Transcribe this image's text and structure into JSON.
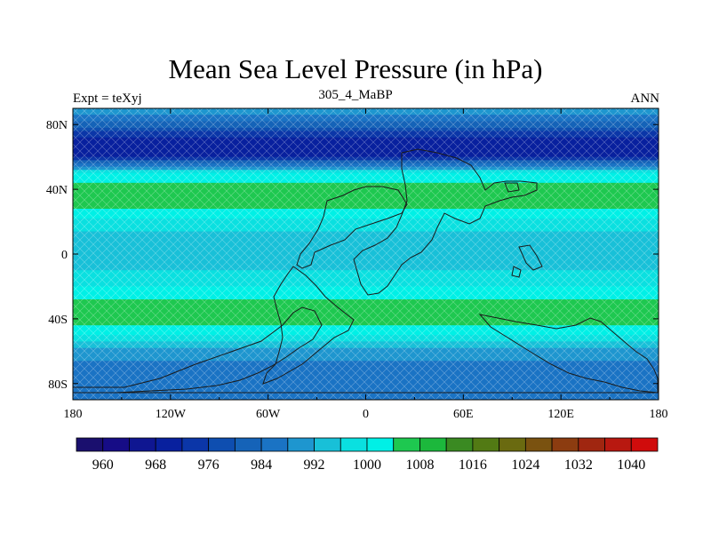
{
  "chart_data": {
    "type": "heatmap",
    "title": "Mean Sea Level Pressure (in hPa)",
    "subtitle_left": "Expt = teXyj",
    "subtitle_center": "305_4_MaBP",
    "subtitle_right": "ANN",
    "x_ticks": [
      "180",
      "120W",
      "60W",
      "0",
      "60E",
      "120E",
      "180"
    ],
    "x_tick_values": [
      -180,
      -120,
      -60,
      0,
      60,
      120,
      180
    ],
    "y_ticks": [
      "80N",
      "40N",
      "0",
      "40S",
      "80S"
    ],
    "y_tick_values": [
      80,
      40,
      0,
      -40,
      -80
    ],
    "xlim": [
      -180,
      180
    ],
    "ylim": [
      -90,
      90
    ],
    "colorbar": {
      "levels": [
        960,
        964,
        968,
        972,
        976,
        980,
        984,
        988,
        992,
        996,
        1000,
        1004,
        1008,
        1012,
        1016,
        1020,
        1024,
        1028,
        1032,
        1036,
        1040
      ],
      "labels": [
        "960",
        "968",
        "976",
        "984",
        "992",
        "1000",
        "1008",
        "1016",
        "1024",
        "1032",
        "1040"
      ],
      "colors": [
        "#1a0f6e",
        "#160c86",
        "#0f1691",
        "#08209e",
        "#0b36a8",
        "#0e4eb0",
        "#1563b8",
        "#1a73c4",
        "#1e96cf",
        "#18c0d8",
        "#0ae0e0",
        "#00f0e6",
        "#1ec850",
        "#1cb83c",
        "#3a8a22",
        "#527a14",
        "#6a6a10",
        "#7a5210",
        "#8c3c10",
        "#a02610",
        "#b81810",
        "#d00c0c"
      ]
    },
    "zonal_profile": {
      "lat": [
        90,
        80,
        70,
        60,
        50,
        40,
        30,
        20,
        10,
        0,
        -10,
        -20,
        -30,
        -40,
        -50,
        -60,
        -70,
        -80,
        -90
      ],
      "msl_hpa": [
        993,
        982,
        968,
        972,
        1000,
        1006,
        1005,
        998,
        994,
        994,
        996,
        1000,
        1005,
        1006,
        1000,
        990,
        986,
        986,
        987
      ]
    }
  }
}
